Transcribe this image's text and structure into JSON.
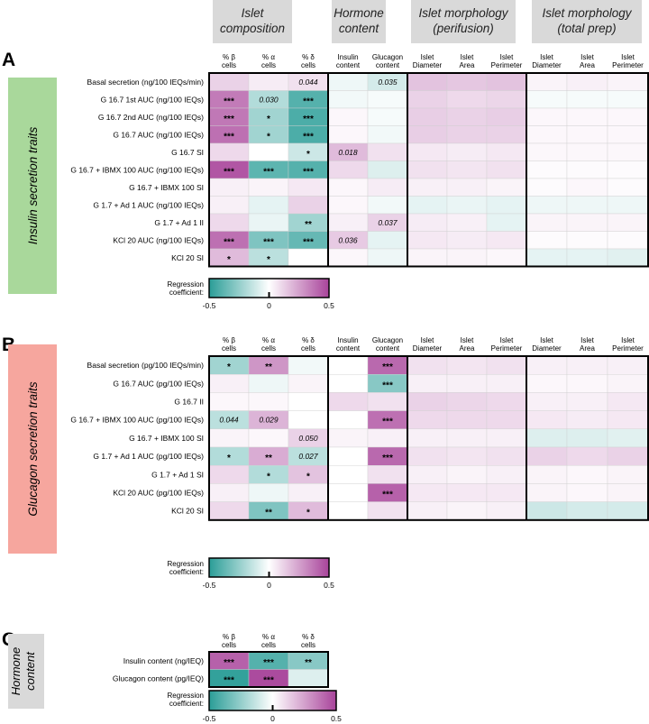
{
  "chart_data": {
    "type": "heatmap",
    "color_scale": {
      "min": -0.5,
      "max": 0.5,
      "neg_color": "#2a9d97",
      "mid_color": "#ffffff",
      "pos_color": "#a8439a"
    },
    "group_headers": [
      "Islet composition",
      "Hormone content",
      "Islet morphology (perifusion)",
      "Islet morphology (total prep)"
    ],
    "columns": [
      "% β cells",
      "% α cells",
      "% δ cells",
      "Insulin content",
      "Glucagon content",
      "Islet Diameter",
      "Islet Area",
      "Islet Perimeter",
      "Islet Diameter",
      "Islet Area",
      "Islet Perimeter"
    ],
    "colorbar": {
      "label": "Regression coefficient:",
      "ticks": [
        "-0.5",
        "0",
        "0.5"
      ]
    },
    "panels": [
      {
        "letter": "A",
        "side_label": "Insulin secretion traits",
        "rows": [
          {
            "label": "Basal secretion (ng/100 IEQs/min)",
            "values": [
              0.12,
              0.05,
              0.08,
              -0.04,
              -0.1,
              0.16,
              0.15,
              0.16,
              0.03,
              0.04,
              0.03
            ],
            "annotations": [
              "",
              "",
              "0.044",
              "",
              "0.035",
              "",
              "",
              "",
              "",
              "",
              ""
            ]
          },
          {
            "label": "G 16.7 1st AUC (ng/100 IEQs)",
            "values": [
              0.35,
              -0.18,
              -0.4,
              -0.03,
              -0.02,
              0.12,
              0.1,
              0.11,
              -0.02,
              -0.02,
              -0.02
            ],
            "annotations": [
              "***",
              "0.030",
              "***",
              "",
              "",
              "",
              "",
              "",
              "",
              "",
              ""
            ]
          },
          {
            "label": "G 16.7 2nd AUC (ng/100 IEQs)",
            "values": [
              0.36,
              -0.22,
              -0.42,
              0.02,
              -0.02,
              0.13,
              0.12,
              0.13,
              0.02,
              0.02,
              0.02
            ],
            "annotations": [
              "***",
              "*",
              "***",
              "",
              "",
              "",
              "",
              "",
              "",
              "",
              ""
            ]
          },
          {
            "label": "G 16.7 AUC (ng/100 IEQs)",
            "values": [
              0.38,
              -0.22,
              -0.42,
              0.02,
              -0.03,
              0.13,
              0.12,
              0.12,
              0.02,
              0.02,
              0.02
            ],
            "annotations": [
              "***",
              "*",
              "***",
              "",
              "",
              "",
              "",
              "",
              "",
              "",
              ""
            ]
          },
          {
            "label": "G 16.7 SI",
            "values": [
              0.1,
              0.0,
              -0.12,
              0.18,
              0.08,
              0.06,
              0.05,
              0.06,
              0.02,
              0.02,
              0.02
            ],
            "annotations": [
              "",
              "",
              "*",
              "0.018",
              "",
              "",
              "",
              "",
              "",
              "",
              ""
            ]
          },
          {
            "label": "G 16.7 + IBMX 100 AUC (ng/100 IEQs)",
            "values": [
              0.45,
              -0.38,
              -0.4,
              0.1,
              -0.08,
              0.08,
              0.07,
              0.08,
              0.01,
              0.01,
              0.01
            ],
            "annotations": [
              "***",
              "***",
              "***",
              "",
              "",
              "",
              "",
              "",
              "",
              "",
              ""
            ]
          },
          {
            "label": "G 16.7 + IBMX 100 SI",
            "values": [
              0.04,
              0.03,
              0.06,
              0.02,
              0.05,
              0.04,
              0.04,
              0.03,
              0.01,
              0.02,
              0.01
            ],
            "annotations": [
              "",
              "",
              "",
              "",
              "",
              "",
              "",
              "",
              "",
              "",
              ""
            ]
          },
          {
            "label": "G 1.7 + Ad 1 AUC (ng/100 IEQs)",
            "values": [
              0.04,
              -0.06,
              0.12,
              0.02,
              -0.03,
              -0.06,
              -0.05,
              -0.06,
              -0.04,
              -0.04,
              -0.04
            ],
            "annotations": [
              "",
              "",
              "",
              "",
              "",
              "",
              "",
              "",
              "",
              "",
              ""
            ]
          },
          {
            "label": "G 1.7 + Ad 1 II",
            "values": [
              0.1,
              -0.05,
              -0.22,
              0.04,
              0.12,
              0.05,
              0.04,
              -0.06,
              0.03,
              0.03,
              0.03
            ],
            "annotations": [
              "",
              "",
              "**",
              "",
              "0.037",
              "",
              "",
              "",
              "",
              "",
              ""
            ]
          },
          {
            "label": "KCl 20 AUC (ng/100 IEQs)",
            "values": [
              0.38,
              -0.3,
              -0.36,
              0.14,
              -0.06,
              0.06,
              0.05,
              0.06,
              0.01,
              0.01,
              0.01
            ],
            "annotations": [
              "***",
              "***",
              "***",
              "0.036",
              "",
              "",
              "",
              "",
              "",
              "",
              ""
            ]
          },
          {
            "label": "KCl 20 SI",
            "values": [
              0.18,
              -0.16,
              0.0,
              0.02,
              -0.04,
              0.03,
              0.03,
              0.02,
              -0.06,
              -0.06,
              -0.07
            ],
            "annotations": [
              "*",
              "*",
              "",
              "",
              "",
              "",
              "",
              "",
              "",
              "",
              ""
            ]
          }
        ]
      },
      {
        "letter": "B",
        "side_label": "Glucagon secretion traits",
        "rows": [
          {
            "label": "Basal secretion (pg/100 IEQs/min)",
            "values": [
              -0.22,
              0.28,
              -0.03,
              0.0,
              0.4,
              0.08,
              0.07,
              0.08,
              0.04,
              0.04,
              0.04
            ],
            "annotations": [
              "*",
              "**",
              "",
              "",
              "***",
              "",
              "",
              "",
              "",
              "",
              ""
            ]
          },
          {
            "label": "G 16.7 AUC (pg/100 IEQs)",
            "values": [
              0.04,
              -0.04,
              0.03,
              0.0,
              -0.28,
              0.04,
              0.04,
              0.04,
              0.02,
              0.02,
              0.03
            ],
            "annotations": [
              "",
              "",
              "",
              "",
              "***",
              "",
              "",
              "",
              "",
              "",
              ""
            ]
          },
          {
            "label": "G 16.7 II",
            "values": [
              0.02,
              0.02,
              0.0,
              0.1,
              0.08,
              0.12,
              0.11,
              0.1,
              0.04,
              0.04,
              0.06
            ],
            "annotations": [
              "",
              "",
              "",
              "",
              "",
              "",
              "",
              "",
              "",
              "",
              ""
            ]
          },
          {
            "label": "G 16.7 + IBMX 100 AUC (pg/100 IEQs)",
            "values": [
              -0.16,
              0.2,
              0.0,
              0.0,
              0.38,
              0.1,
              0.1,
              0.1,
              0.06,
              0.05,
              0.06
            ],
            "annotations": [
              "0.044",
              "0.029",
              "",
              "",
              "***",
              "",
              "",
              "",
              "",
              "",
              ""
            ]
          },
          {
            "label": "G 16.7 + IBMX 100 SI",
            "values": [
              0.03,
              0.02,
              0.12,
              0.03,
              0.04,
              0.04,
              0.04,
              0.04,
              -0.08,
              -0.08,
              -0.07
            ],
            "annotations": [
              "",
              "",
              "0.050",
              "",
              "",
              "",
              "",
              "",
              "",
              "",
              ""
            ]
          },
          {
            "label": "G 1.7 + Ad 1 AUC (pg/100 IEQs)",
            "values": [
              -0.18,
              0.22,
              -0.16,
              0.0,
              0.4,
              0.08,
              0.07,
              0.08,
              0.12,
              0.1,
              0.12
            ],
            "annotations": [
              "*",
              "**",
              "0.027",
              "",
              "***",
              "",
              "",
              "",
              "",
              "",
              ""
            ]
          },
          {
            "label": "G 1.7 + Ad 1 SI",
            "values": [
              0.1,
              -0.18,
              0.16,
              0.0,
              0.08,
              0.04,
              0.03,
              0.04,
              0.03,
              0.02,
              0.03
            ],
            "annotations": [
              "",
              "*",
              "*",
              "",
              "",
              "",
              "",
              "",
              "",
              "",
              ""
            ]
          },
          {
            "label": "KCl 20 AUC (pg/100 IEQs)",
            "values": [
              0.04,
              -0.04,
              0.04,
              0.0,
              0.42,
              0.06,
              0.06,
              0.06,
              0.03,
              0.02,
              0.03
            ],
            "annotations": [
              "",
              "",
              "",
              "",
              "***",
              "",
              "",
              "",
              "",
              "",
              ""
            ]
          },
          {
            "label": "KCl 20 SI",
            "values": [
              0.1,
              -0.3,
              0.18,
              0.0,
              0.08,
              0.04,
              0.03,
              0.04,
              -0.12,
              -0.1,
              -0.1
            ],
            "annotations": [
              "",
              "**",
              "*",
              "",
              "",
              "",
              "",
              "",
              "",
              "",
              ""
            ]
          }
        ]
      },
      {
        "letter": "C",
        "side_label": "Hormone content",
        "columns": [
          "% β cells",
          "% α cells",
          "% δ cells"
        ],
        "rows": [
          {
            "label": "Insulin content (ng/IEQ)",
            "values": [
              0.42,
              -0.4,
              -0.28
            ],
            "annotations": [
              "***",
              "***",
              "**"
            ]
          },
          {
            "label": "Glucagon content (pg/IEQ)",
            "values": [
              -0.48,
              0.48,
              -0.08
            ],
            "annotations": [
              "***",
              "***",
              ""
            ]
          }
        ]
      }
    ]
  }
}
